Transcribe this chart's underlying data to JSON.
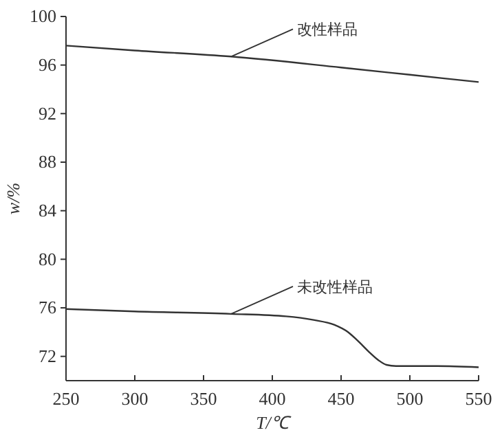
{
  "chart_data": {
    "type": "line",
    "xlabel": "T/℃",
    "ylabel": "w/%",
    "xlim": [
      250,
      550
    ],
    "ylim": [
      70,
      100
    ],
    "xticks": [
      250,
      300,
      350,
      400,
      450,
      500,
      550
    ],
    "yticks": [
      72,
      76,
      80,
      84,
      88,
      92,
      96,
      100
    ],
    "grid": false,
    "line_style": "solid",
    "marker": "none",
    "series": [
      {
        "color": "#333333",
        "x": [
          250,
          300,
          370,
          450,
          500,
          550
        ],
        "values": [
          97.6,
          97.2,
          96.7,
          95.8,
          95.2,
          94.6
        ]
      },
      {
        "color": "#333333",
        "x": [
          250,
          300,
          370,
          410,
          430,
          445,
          455,
          462,
          470,
          477,
          483,
          490,
          520,
          550
        ],
        "values": [
          75.9,
          75.7,
          75.5,
          75.3,
          75.0,
          74.6,
          74.0,
          73.3,
          72.4,
          71.7,
          71.3,
          71.2,
          71.2,
          71.1
        ]
      }
    ],
    "annotations": [
      {
        "text": "改性样品",
        "x": 370,
        "y": 96.7
      },
      {
        "text": "未改性样品",
        "x": 370,
        "y": 75.5
      }
    ]
  }
}
